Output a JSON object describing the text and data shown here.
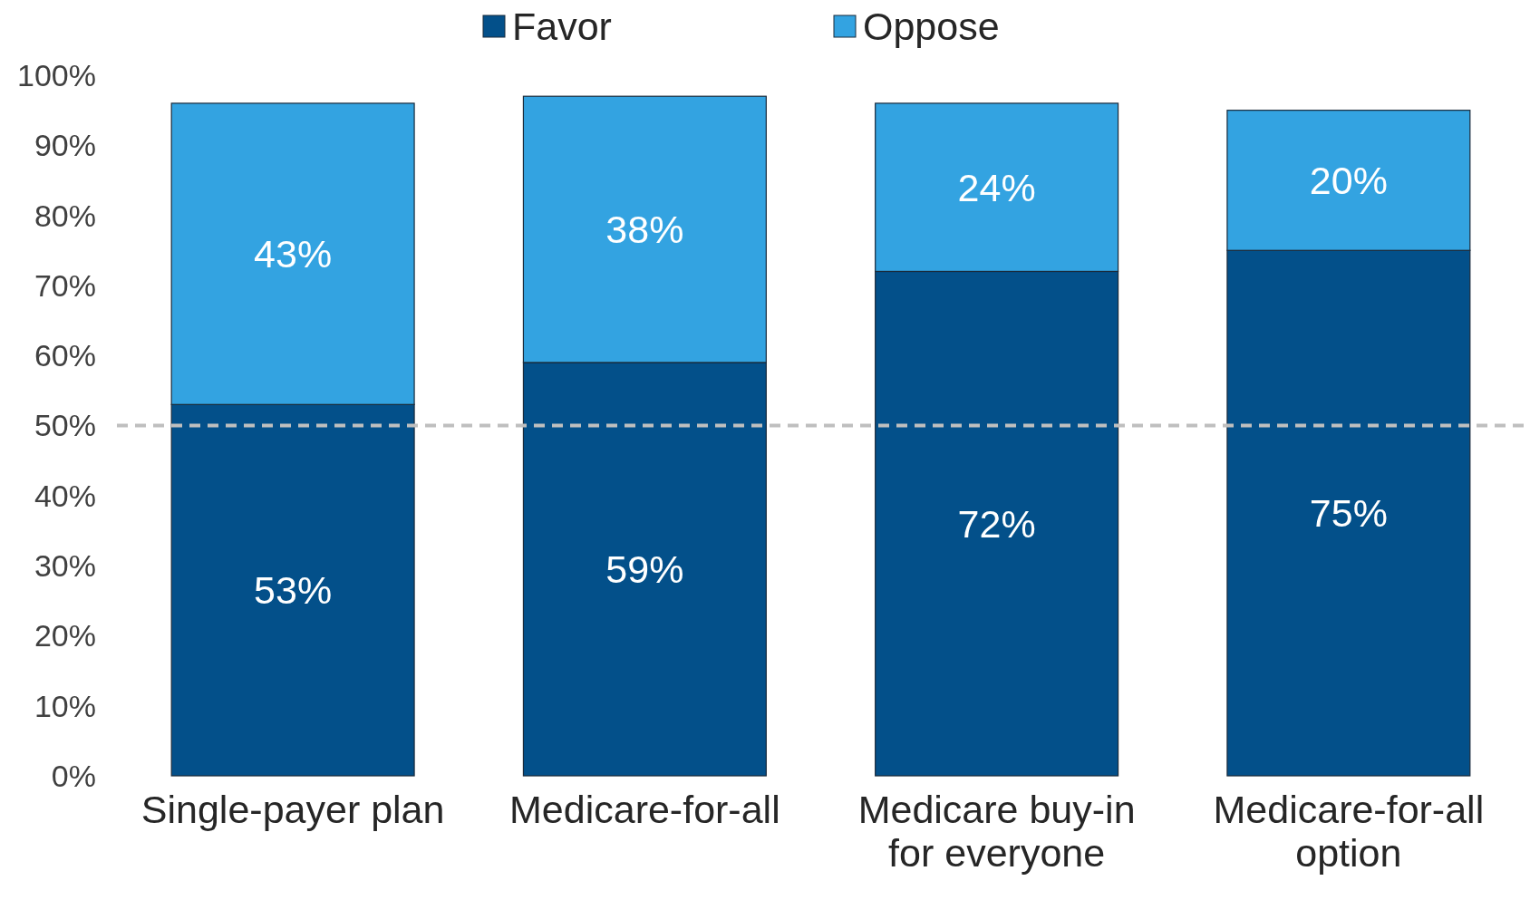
{
  "chart_data": {
    "type": "bar",
    "stacked": true,
    "categories": [
      "Single-payer plan",
      "Medicare-for-all",
      "Medicare buy-in for everyone",
      "Medicare-for-all option"
    ],
    "series": [
      {
        "name": "Favor",
        "color": "#03508a",
        "values": [
          53,
          59,
          72,
          75
        ],
        "value_labels": [
          "53%",
          "59%",
          "72%",
          "75%"
        ]
      },
      {
        "name": "Oppose",
        "color": "#33a3e1",
        "values": [
          43,
          38,
          24,
          20
        ],
        "value_labels": [
          "43%",
          "38%",
          "24%",
          "20%"
        ]
      }
    ],
    "ylim": [
      0,
      100
    ],
    "yticks": [
      {
        "value": 0,
        "label": "0%"
      },
      {
        "value": 10,
        "label": "10%"
      },
      {
        "value": 20,
        "label": "20%"
      },
      {
        "value": 30,
        "label": "30%"
      },
      {
        "value": 40,
        "label": "40%"
      },
      {
        "value": 50,
        "label": "50%"
      },
      {
        "value": 60,
        "label": "60%"
      },
      {
        "value": 70,
        "label": "70%"
      },
      {
        "value": 80,
        "label": "80%"
      },
      {
        "value": 90,
        "label": "90%"
      },
      {
        "value": 100,
        "label": "100%"
      }
    ],
    "ref_lines": [
      {
        "axis": "y",
        "value": 50,
        "color": "#bfbfbf",
        "line_style": "dashed"
      }
    ],
    "legend": "top",
    "grid": false
  }
}
